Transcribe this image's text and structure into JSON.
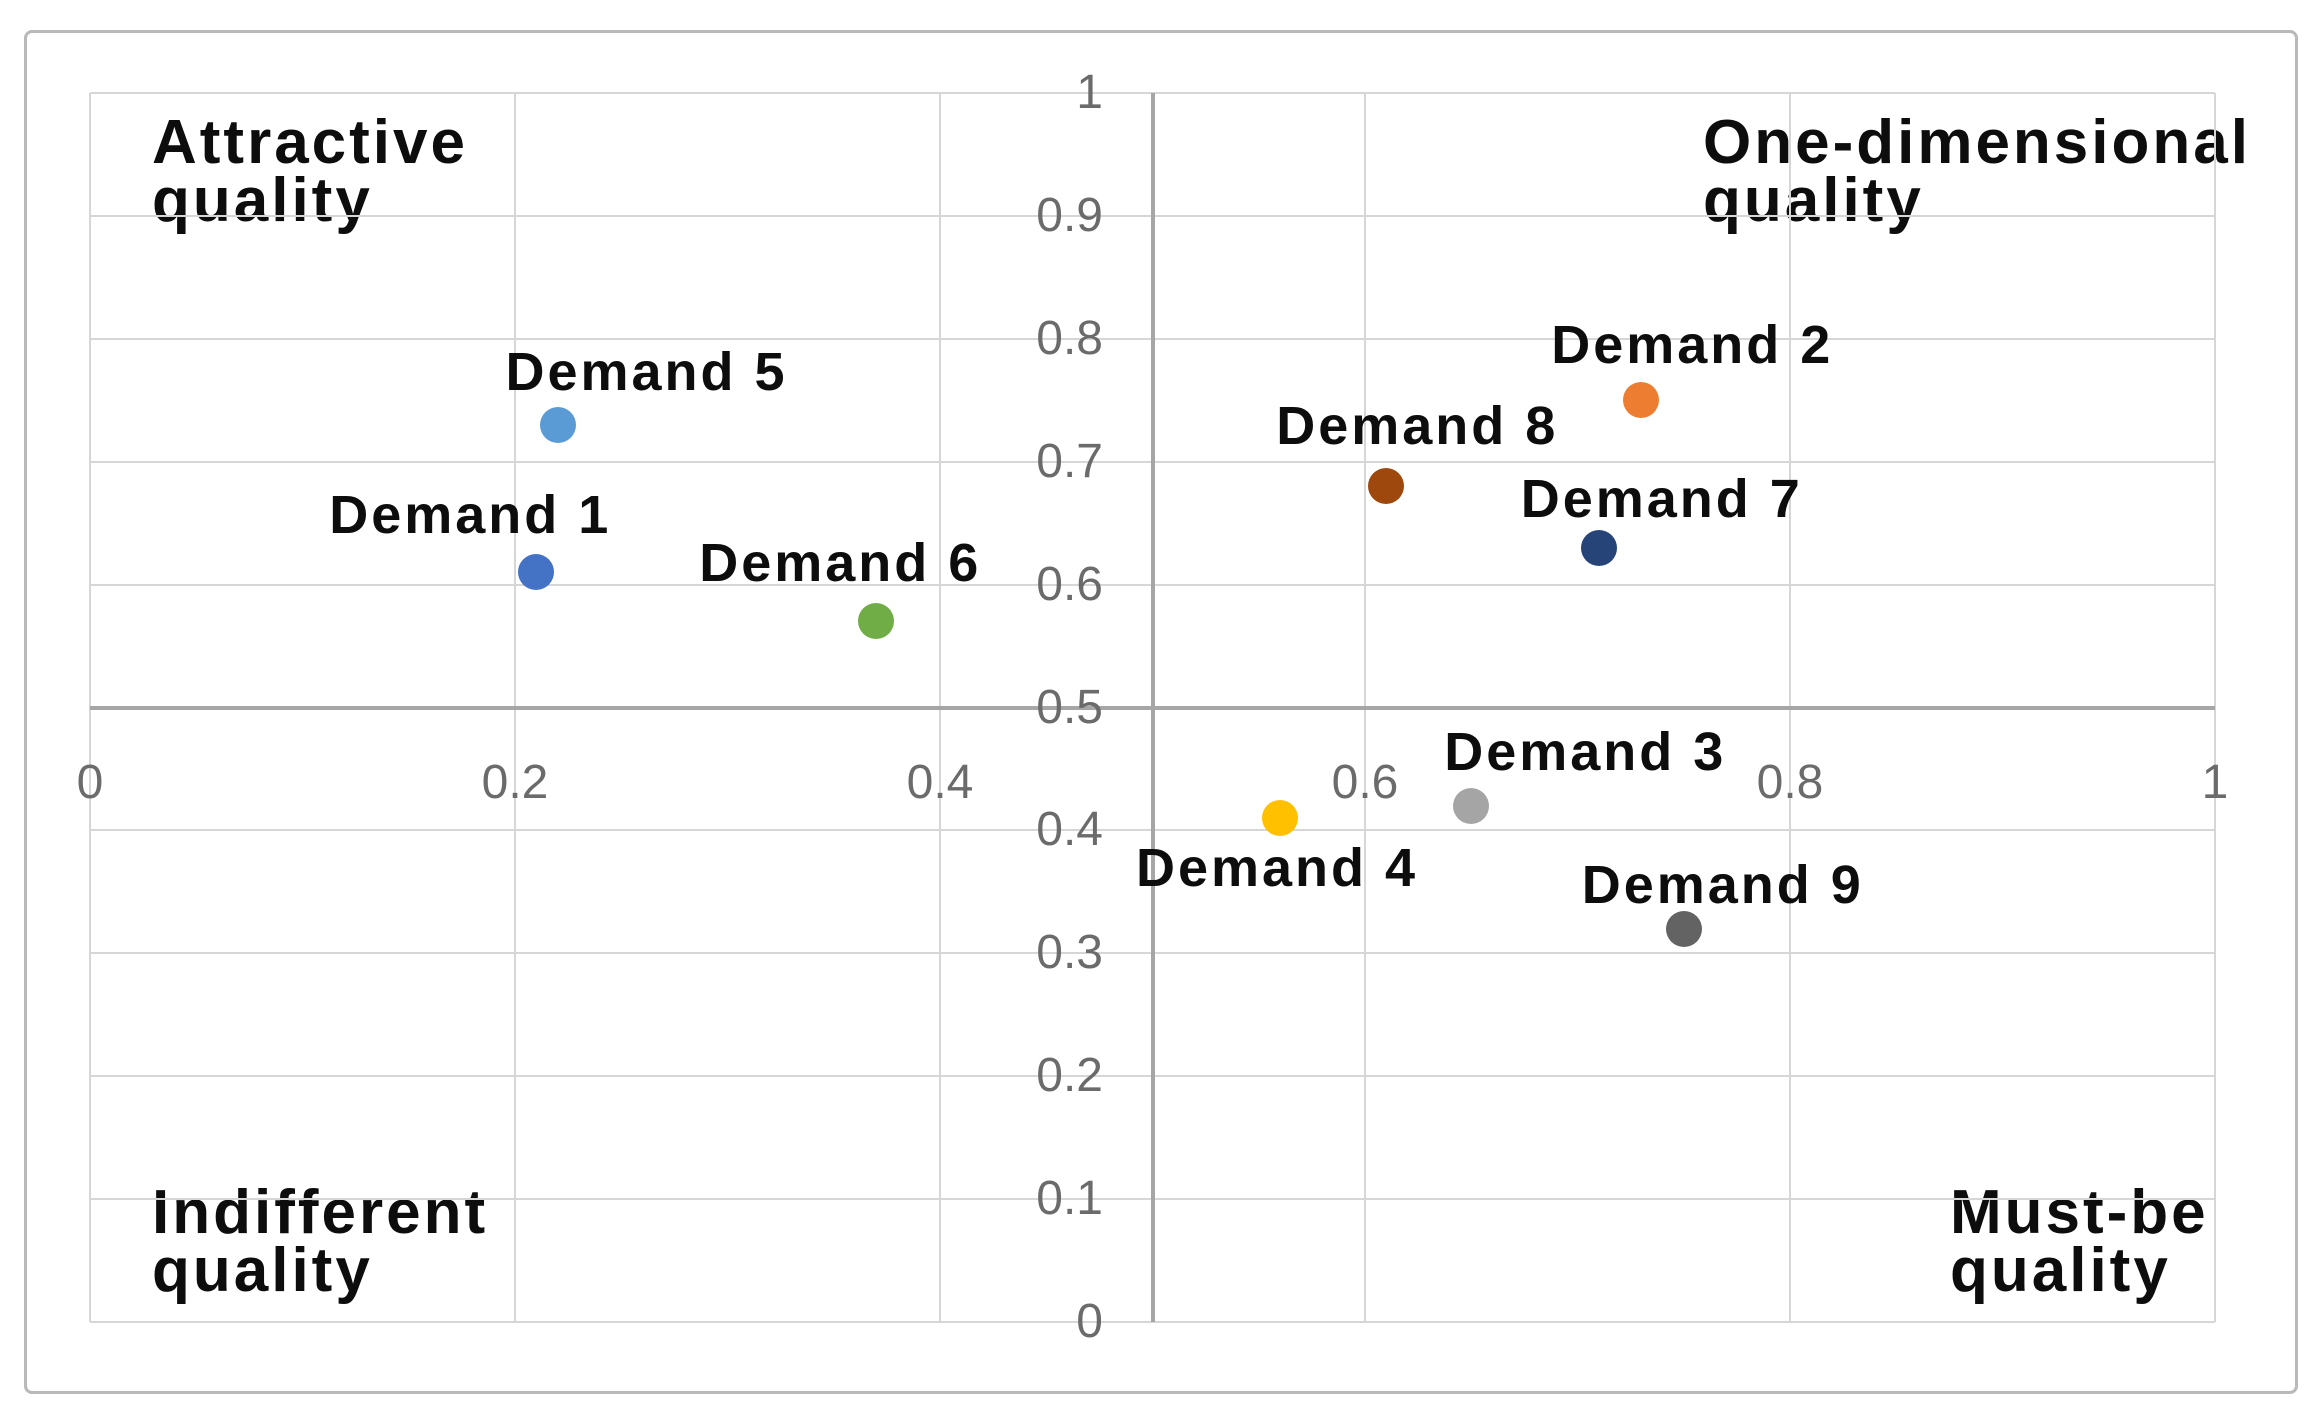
{
  "chart_data": {
    "type": "scatter",
    "title": "",
    "xlabel": "",
    "ylabel": "",
    "x_axis": {
      "min": 0,
      "max": 1,
      "tick_interval": 0.2,
      "ticks": [
        0,
        0.2,
        0.4,
        0.6,
        0.8,
        1
      ],
      "tick_labels": [
        "0",
        "0.2",
        "0.4",
        "0.6",
        "0.8",
        "1"
      ]
    },
    "y_axis": {
      "min": 0,
      "max": 1,
      "tick_interval": 0.1,
      "ticks": [
        1,
        0.9,
        0.8,
        0.7,
        0.6,
        0.5,
        0.4,
        0.3,
        0.2,
        0.1,
        0
      ],
      "tick_labels": [
        "1",
        "0.9",
        "0.8",
        "0.7",
        "0.6",
        "0.5",
        "0.4",
        "0.3",
        "0.2",
        "0.1",
        "0"
      ]
    },
    "axes_cross_at": {
      "x": 0.5,
      "y": 0.5
    },
    "grid": true,
    "legend": "none",
    "points": [
      {
        "label": "Demand 1",
        "x": 0.21,
        "y": 0.61,
        "color": "#4472C4",
        "label_offset": [
          -66,
          -57
        ]
      },
      {
        "label": "Demand 2",
        "x": 0.73,
        "y": 0.75,
        "color": "#ED7D31",
        "label_offset": [
          51,
          -55
        ]
      },
      {
        "label": "Demand 3",
        "x": 0.65,
        "y": 0.42,
        "color": "#A5A5A5",
        "label_offset": [
          114,
          -54
        ]
      },
      {
        "label": "Demand 4",
        "x": 0.56,
        "y": 0.41,
        "color": "#FFC000",
        "label_offset": [
          -3,
          50
        ]
      },
      {
        "label": "Demand 5",
        "x": 0.22,
        "y": 0.73,
        "color": "#5B9BD5",
        "label_offset": [
          89,
          -53
        ]
      },
      {
        "label": "Demand 6",
        "x": 0.37,
        "y": 0.57,
        "color": "#70AD47",
        "label_offset": [
          -36,
          -58
        ]
      },
      {
        "label": "Demand 7",
        "x": 0.71,
        "y": 0.63,
        "color": "#264478",
        "label_offset": [
          63,
          -49
        ]
      },
      {
        "label": "Demand 8",
        "x": 0.61,
        "y": 0.68,
        "color": "#9E480E",
        "label_offset": [
          31,
          -60
        ]
      },
      {
        "label": "Demand 9",
        "x": 0.75,
        "y": 0.32,
        "color": "#636363",
        "label_offset": [
          39,
          -44
        ]
      }
    ],
    "quadrants": {
      "top_left": {
        "line1": "Attractive",
        "line2": "quality"
      },
      "top_right": {
        "line1": "One-dimensional",
        "line2": "quality"
      },
      "bottom_left": {
        "line1": "Indifferent",
        "line2": "quality"
      },
      "bottom_right": {
        "line1": "Must-be",
        "line2": "quality"
      }
    }
  },
  "colors": {
    "background": "#ffffff",
    "figure_border": "#b9b9b9",
    "gridline": "#d6d6d6",
    "axis_line": "#a6a6a6",
    "tick_label": "#6b6b6b",
    "point_label": "#0d0d0d"
  }
}
